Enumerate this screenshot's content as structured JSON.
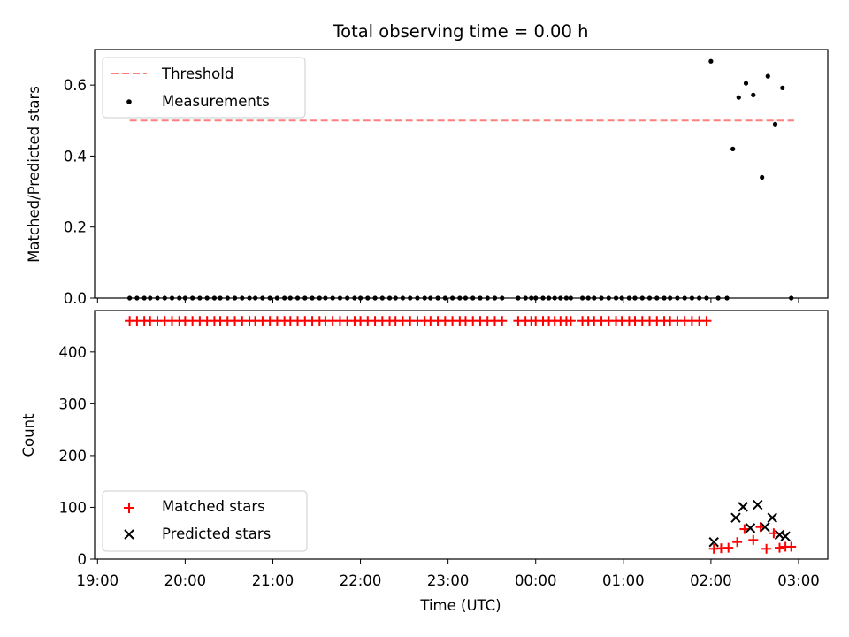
{
  "chart_data": [
    {
      "type": "scatter",
      "title": "Total observing time = 0.00 h",
      "xlabel": "",
      "ylabel": "Matched/Predicted stars",
      "xlim": [
        "18:58",
        "03:20"
      ],
      "ylim": [
        0,
        0.7
      ],
      "yticks": [
        "0.0",
        "0.2",
        "0.4",
        "0.6"
      ],
      "grid": false,
      "legend_position": "upper-left",
      "legend": [
        "Threshold",
        "Measurements"
      ],
      "series": [
        {
          "name": "Threshold",
          "kind": "dashed-line",
          "color": "#ff7f7f",
          "x": [
            "19:22",
            "02:57"
          ],
          "y": [
            0.5,
            0.5
          ]
        },
        {
          "name": "Measurements",
          "kind": "points",
          "color": "#000000",
          "x": [
            "19:22",
            "19:27",
            "19:32",
            "19:36",
            "19:41",
            "19:46",
            "19:51",
            "19:56",
            "20:00",
            "20:05",
            "20:10",
            "20:15",
            "20:20",
            "20:24",
            "20:29",
            "20:34",
            "20:39",
            "20:44",
            "20:48",
            "20:53",
            "20:58",
            "21:03",
            "21:08",
            "21:12",
            "21:17",
            "21:22",
            "21:27",
            "21:32",
            "21:36",
            "21:41",
            "21:46",
            "21:51",
            "21:56",
            "22:00",
            "22:05",
            "22:10",
            "22:15",
            "22:20",
            "22:24",
            "22:29",
            "22:34",
            "22:39",
            "22:44",
            "22:48",
            "22:53",
            "22:58",
            "23:03",
            "23:08",
            "23:12",
            "23:17",
            "23:22",
            "23:27",
            "23:32",
            "23:37",
            "23:48",
            "23:53",
            "23:57",
            "00:00",
            "00:05",
            "00:09",
            "00:13",
            "00:17",
            "00:21",
            "00:24",
            "00:32",
            "00:36",
            "00:40",
            "00:45",
            "00:50",
            "00:55",
            "00:59",
            "01:04",
            "01:08",
            "01:13",
            "01:18",
            "01:23",
            "01:28",
            "01:32",
            "01:37",
            "01:42",
            "01:47",
            "01:52",
            "01:57",
            "02:00",
            "02:05",
            "02:11",
            "02:15",
            "02:19",
            "02:24",
            "02:29",
            "02:35",
            "02:39",
            "02:44",
            "02:49",
            "02:55"
          ],
          "y": [
            0,
            0,
            0,
            0,
            0,
            0,
            0,
            0,
            0,
            0,
            0,
            0,
            0,
            0,
            0,
            0,
            0,
            0,
            0,
            0,
            0,
            0,
            0,
            0,
            0,
            0,
            0,
            0,
            0,
            0,
            0,
            0,
            0,
            0,
            0,
            0,
            0,
            0,
            0,
            0,
            0,
            0,
            0,
            0,
            0,
            0,
            0,
            0,
            0,
            0,
            0,
            0,
            0,
            0,
            0,
            0,
            0,
            0,
            0,
            0,
            0,
            0,
            0,
            0,
            0,
            0,
            0,
            0,
            0,
            0,
            0,
            0,
            0,
            0,
            0,
            0,
            0,
            0,
            0,
            0,
            0,
            0,
            0,
            0.667,
            0,
            0,
            0.42,
            0.565,
            0.605,
            0.572,
            0.34,
            0.625,
            0.49,
            0.592,
            0
          ]
        }
      ]
    },
    {
      "type": "scatter",
      "title": "",
      "xlabel": "Time (UTC)",
      "ylabel": "Count",
      "xlim": [
        "18:58",
        "03:20"
      ],
      "ylim": [
        0,
        480
      ],
      "yticks": [
        "0",
        "100",
        "200",
        "300",
        "400"
      ],
      "xticks": [
        "19:00",
        "20:00",
        "21:00",
        "22:00",
        "23:00",
        "00:00",
        "01:00",
        "02:00",
        "03:00"
      ],
      "grid": false,
      "legend_position": "lower-left",
      "legend": [
        "Matched stars",
        "Predicted stars"
      ],
      "series": [
        {
          "name": "Matched stars",
          "marker": "plus",
          "color": "#ff0000",
          "x": [
            "19:22",
            "19:27",
            "19:32",
            "19:36",
            "19:41",
            "19:46",
            "19:51",
            "19:56",
            "20:00",
            "20:05",
            "20:10",
            "20:15",
            "20:20",
            "20:24",
            "20:29",
            "20:34",
            "20:39",
            "20:44",
            "20:48",
            "20:53",
            "20:58",
            "21:03",
            "21:08",
            "21:12",
            "21:17",
            "21:22",
            "21:27",
            "21:32",
            "21:36",
            "21:41",
            "21:46",
            "21:51",
            "21:56",
            "22:00",
            "22:05",
            "22:10",
            "22:15",
            "22:20",
            "22:24",
            "22:29",
            "22:34",
            "22:39",
            "22:44",
            "22:48",
            "22:53",
            "22:58",
            "23:03",
            "23:08",
            "23:12",
            "23:17",
            "23:22",
            "23:27",
            "23:32",
            "23:37",
            "23:48",
            "23:53",
            "23:57",
            "00:00",
            "00:05",
            "00:09",
            "00:13",
            "00:17",
            "00:21",
            "00:24",
            "00:32",
            "00:36",
            "00:40",
            "00:45",
            "00:50",
            "00:55",
            "00:59",
            "01:04",
            "01:08",
            "01:13",
            "01:18",
            "01:23",
            "01:28",
            "01:32",
            "01:37",
            "01:42",
            "01:47",
            "01:52",
            "01:57",
            "02:02",
            "02:07",
            "02:12",
            "02:18",
            "02:23",
            "02:29",
            "02:34",
            "02:38",
            "02:43",
            "02:47",
            "02:51",
            "02:55"
          ],
          "y": [
            460,
            460,
            460,
            460,
            460,
            460,
            460,
            460,
            460,
            460,
            460,
            460,
            460,
            460,
            460,
            460,
            460,
            460,
            460,
            460,
            460,
            460,
            460,
            460,
            460,
            460,
            460,
            460,
            460,
            460,
            460,
            460,
            460,
            460,
            460,
            460,
            460,
            460,
            460,
            460,
            460,
            460,
            460,
            460,
            460,
            460,
            460,
            460,
            460,
            460,
            460,
            460,
            460,
            460,
            460,
            460,
            460,
            460,
            460,
            460,
            460,
            460,
            460,
            460,
            460,
            460,
            460,
            460,
            460,
            460,
            460,
            460,
            460,
            460,
            460,
            460,
            460,
            460,
            460,
            460,
            460,
            460,
            460,
            20,
            21,
            22,
            33,
            58,
            37,
            62,
            20,
            50,
            22,
            24,
            24
          ]
        },
        {
          "name": "Predicted stars",
          "marker": "x",
          "color": "#000000",
          "x": [
            "02:02",
            "02:17",
            "02:22",
            "02:27",
            "02:32",
            "02:37",
            "02:42",
            "02:47",
            "02:51"
          ],
          "y": [
            33,
            80,
            101,
            60,
            105,
            62,
            80,
            47,
            44
          ]
        }
      ]
    }
  ]
}
